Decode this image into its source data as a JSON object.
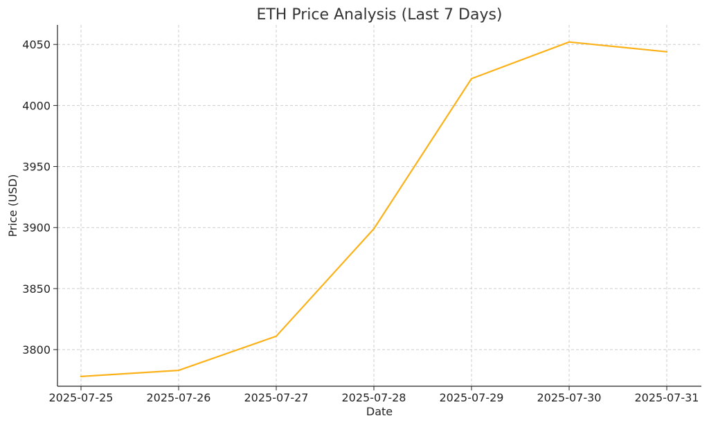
{
  "chart_data": {
    "type": "line",
    "title": "ETH Price Analysis (Last 7 Days)",
    "xlabel": "Date",
    "ylabel": "Price (USD)",
    "x": [
      "2025-07-25",
      "2025-07-26",
      "2025-07-27",
      "2025-07-28",
      "2025-07-29",
      "2025-07-30",
      "2025-07-31"
    ],
    "y_ticks": [
      3800,
      3850,
      3900,
      3950,
      4000,
      4050
    ],
    "ylim": [
      3770,
      4066
    ],
    "grid": true,
    "series": [
      {
        "values": [
          3778,
          3783,
          3811,
          3899,
          4022,
          4052,
          4044
        ],
        "color": "#FBB117"
      }
    ]
  }
}
